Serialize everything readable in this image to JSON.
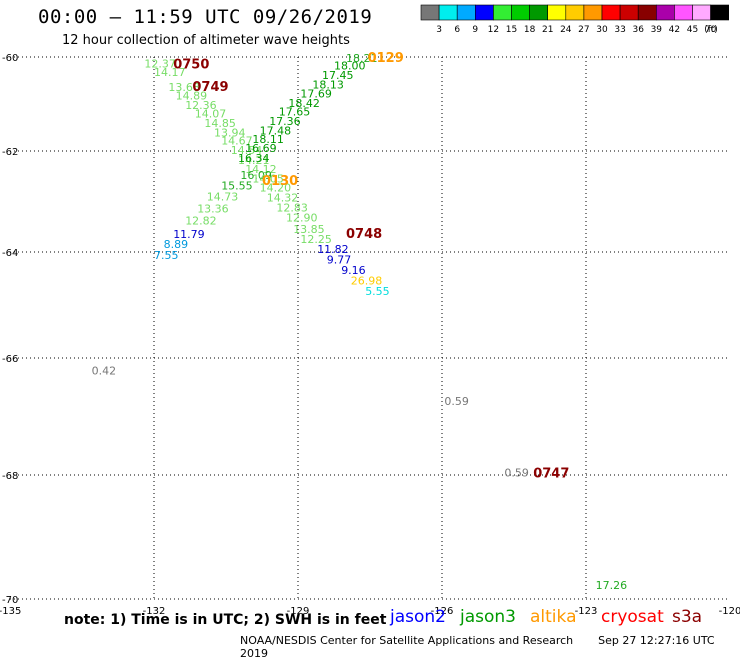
{
  "header": {
    "title": "00:00 – 11:59 UTC 09/26/2019",
    "subtitle": "12 hour collection of altimeter wave heights"
  },
  "colorbar": {
    "unit_label": "(ft)",
    "bins": [
      {
        "color": "#777777",
        "label": "3"
      },
      {
        "color": "#00eeee",
        "label": "6"
      },
      {
        "color": "#00aaff",
        "label": "9"
      },
      {
        "color": "#0000ff",
        "label": "12"
      },
      {
        "color": "#33ee33",
        "label": "15"
      },
      {
        "color": "#00cc00",
        "label": "18"
      },
      {
        "color": "#009900",
        "label": "21"
      },
      {
        "color": "#ffff00",
        "label": "24"
      },
      {
        "color": "#ffcc00",
        "label": "27"
      },
      {
        "color": "#ff9900",
        "label": "30"
      },
      {
        "color": "#ff0000",
        "label": "33"
      },
      {
        "color": "#cc0000",
        "label": "36"
      },
      {
        "color": "#880000",
        "label": "39"
      },
      {
        "color": "#aa00aa",
        "label": "42"
      },
      {
        "color": "#ff55ff",
        "label": "45"
      },
      {
        "color": "#ffaaff",
        "label": "70"
      },
      {
        "color": "#000000",
        "label": ""
      }
    ]
  },
  "chart_data": {
    "type": "scatter",
    "x_ticks": [
      -135,
      -132,
      -129,
      -126,
      -123,
      -120
    ],
    "y_ticks": [
      -60,
      -62,
      -64,
      -66,
      -68,
      -70
    ],
    "xlim": [
      -135,
      -120
    ],
    "ylim": [
      -70,
      -60
    ],
    "grid": true,
    "points": [
      {
        "text": "12.37",
        "color": "#77dd66",
        "x": -132.2,
        "y": -60.12
      },
      {
        "text": "14.17",
        "color": "#77dd66",
        "x": -132.0,
        "y": -60.3
      },
      {
        "text": "13.68",
        "color": "#77dd66",
        "x": -131.7,
        "y": -60.62
      },
      {
        "text": "14.89",
        "color": "#77dd66",
        "x": -131.55,
        "y": -60.8
      },
      {
        "text": "12.36",
        "color": "#77dd66",
        "x": -131.35,
        "y": -61.0
      },
      {
        "text": "14.07",
        "color": "#77dd66",
        "x": -131.15,
        "y": -61.18
      },
      {
        "text": "14.85",
        "color": "#77dd66",
        "x": -130.95,
        "y": -61.38
      },
      {
        "text": "13.94",
        "color": "#77dd66",
        "x": -130.75,
        "y": -61.58
      },
      {
        "text": "14.67",
        "color": "#77dd66",
        "x": -130.6,
        "y": -61.76
      },
      {
        "text": "14.54",
        "color": "#77dd66",
        "x": -130.4,
        "y": -61.96
      },
      {
        "text": "14.21",
        "color": "#77dd66",
        "x": -130.25,
        "y": -62.16
      },
      {
        "text": "14.12",
        "color": "#77dd66",
        "x": -130.1,
        "y": -62.34
      },
      {
        "text": "16.09",
        "color": "#22aa22",
        "x": -130.2,
        "y": -62.46
      },
      {
        "text": "15.55",
        "color": "#22aa22",
        "x": -130.6,
        "y": -62.66
      },
      {
        "text": "14.73",
        "color": "#77dd66",
        "x": -130.9,
        "y": -62.88
      },
      {
        "text": "13.36",
        "color": "#77dd66",
        "x": -131.1,
        "y": -63.12
      },
      {
        "text": "12.82",
        "color": "#77dd66",
        "x": -131.35,
        "y": -63.36
      },
      {
        "text": "11.79",
        "color": "#0000cc",
        "x": -131.6,
        "y": -63.62
      },
      {
        "text": "8.89",
        "color": "#0099dd",
        "x": -131.8,
        "y": -63.82
      },
      {
        "text": "7.55",
        "color": "#0099dd",
        "x": -132.0,
        "y": -64.04
      },
      {
        "text": "18.21",
        "color": "#22aa22",
        "x": -128.0,
        "y": -60.0
      },
      {
        "text": "18.00",
        "color": "#009900",
        "x": -128.25,
        "y": -60.16
      },
      {
        "text": "17.45",
        "color": "#009900",
        "x": -128.5,
        "y": -60.36
      },
      {
        "text": "18.13",
        "color": "#009900",
        "x": -128.7,
        "y": -60.56
      },
      {
        "text": "17.69",
        "color": "#009900",
        "x": -128.95,
        "y": -60.76
      },
      {
        "text": "18.42",
        "color": "#009900",
        "x": -129.2,
        "y": -60.96
      },
      {
        "text": "17.65",
        "color": "#009900",
        "x": -129.4,
        "y": -61.14
      },
      {
        "text": "17.36",
        "color": "#009900",
        "x": -129.6,
        "y": -61.34
      },
      {
        "text": "17.48",
        "color": "#009900",
        "x": -129.8,
        "y": -61.54
      },
      {
        "text": "18.11",
        "color": "#009900",
        "x": -129.95,
        "y": -61.72
      },
      {
        "text": "16.69",
        "color": "#009900",
        "x": -130.1,
        "y": -61.92
      },
      {
        "text": "16.34",
        "color": "#009900",
        "x": -130.25,
        "y": -62.12
      },
      {
        "text": "14.05",
        "color": "#77dd66",
        "x": -129.95,
        "y": -62.52
      },
      {
        "text": "14.20",
        "color": "#77dd66",
        "x": -129.8,
        "y": -62.7
      },
      {
        "text": "14.32",
        "color": "#77dd66",
        "x": -129.65,
        "y": -62.9
      },
      {
        "text": "12.83",
        "color": "#77dd66",
        "x": -129.45,
        "y": -63.1
      },
      {
        "text": "12.90",
        "color": "#77dd66",
        "x": -129.25,
        "y": -63.3
      },
      {
        "text": "13.85",
        "color": "#77dd66",
        "x": -129.1,
        "y": -63.52
      },
      {
        "text": "12.25",
        "color": "#77dd66",
        "x": -128.95,
        "y": -63.72
      },
      {
        "text": "11.82",
        "color": "#0000cc",
        "x": -128.6,
        "y": -63.92
      },
      {
        "text": "9.77",
        "color": "#0000cc",
        "x": -128.4,
        "y": -64.12
      },
      {
        "text": "9.16",
        "color": "#0000cc",
        "x": -128.1,
        "y": -64.32
      },
      {
        "text": "26.98",
        "color": "#ffcc00",
        "x": -127.9,
        "y": -64.52
      },
      {
        "text": "5.55",
        "color": "#00dddd",
        "x": -127.6,
        "y": -64.72
      },
      {
        "text": "0.42",
        "color": "#777777",
        "x": -133.3,
        "y": -66.2
      },
      {
        "text": "0.59",
        "color": "#777777",
        "x": -125.95,
        "y": -66.72
      },
      {
        "text": "0.59",
        "color": "#777777",
        "x": -124.7,
        "y": -67.94
      },
      {
        "text": "17.26",
        "color": "#22aa22",
        "x": -122.8,
        "y": -69.76
      }
    ],
    "time_labels": [
      {
        "text": "0750",
        "color": "#8b0000",
        "x": -131.6,
        "y": -60.12
      },
      {
        "text": "0749",
        "color": "#8b0000",
        "x": -131.2,
        "y": -60.6
      },
      {
        "text": "0129",
        "color": "#ff9900",
        "x": -127.55,
        "y": -59.98
      },
      {
        "text": "0130",
        "color": "#ff9900",
        "x": -129.75,
        "y": -62.55
      },
      {
        "text": "0748",
        "color": "#8b0000",
        "x": -128.0,
        "y": -63.6
      },
      {
        "text": "0747",
        "color": "#8b0000",
        "x": -124.1,
        "y": -67.94
      }
    ]
  },
  "footer": {
    "note": "note:  1) Time is in UTC;  2) SWH is in feet",
    "legend": [
      {
        "name": "jason2",
        "color": "#0000ff"
      },
      {
        "name": "jason3",
        "color": "#009900"
      },
      {
        "name": "altika",
        "color": "#ff9900"
      },
      {
        "name": "cryosat",
        "color": "#ff0000"
      },
      {
        "name": "s3a",
        "color": "#8b0000"
      }
    ],
    "credit": "NOAA/NESDIS Center for Satellite Applications and Research",
    "timestamp": "Sep 27 12:27:16 UTC 2019"
  }
}
